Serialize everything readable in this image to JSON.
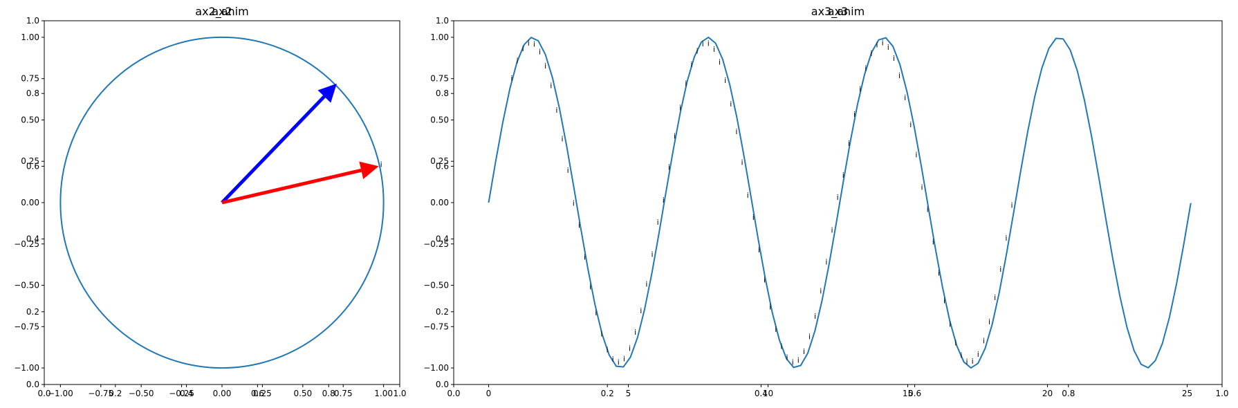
{
  "chart_data": [
    {
      "type": "line",
      "titles": [
        "ax2",
        "ax2_anim"
      ],
      "xlim": [
        -1.1,
        1.1
      ],
      "ylim": [
        -1.1,
        1.1
      ],
      "xticks": [
        {
          "v": -1.0,
          "label": "−1.00"
        },
        {
          "v": -0.75,
          "label": "−0.75"
        },
        {
          "v": -0.5,
          "label": "−0.50"
        },
        {
          "v": -0.25,
          "label": "−0.25"
        },
        {
          "v": 0.0,
          "label": "0.00"
        },
        {
          "v": 0.25,
          "label": "0.25"
        },
        {
          "v": 0.5,
          "label": "0.50"
        },
        {
          "v": 0.75,
          "label": "0.75"
        },
        {
          "v": 1.0,
          "label": "1.00"
        }
      ],
      "yticks": [
        {
          "v": -1.0,
          "label": "−1.00"
        },
        {
          "v": -0.75,
          "label": "−0.75"
        },
        {
          "v": -0.5,
          "label": "−0.50"
        },
        {
          "v": -0.25,
          "label": "−0.25"
        },
        {
          "v": 0.0,
          "label": "0.00"
        },
        {
          "v": 0.25,
          "label": "0.25"
        },
        {
          "v": 0.5,
          "label": "0.50"
        },
        {
          "v": 0.75,
          "label": "0.75"
        },
        {
          "v": 1.0,
          "label": "1.00"
        }
      ],
      "overlay_xticks": [
        {
          "v": 0.0,
          "label": "0.0"
        },
        {
          "v": 0.2,
          "label": "0.2"
        },
        {
          "v": 0.4,
          "label": "0.4"
        },
        {
          "v": 0.6,
          "label": "0.6"
        },
        {
          "v": 0.8,
          "label": "0.8"
        },
        {
          "v": 1.0,
          "label": "1.0"
        }
      ],
      "overlay_yticks": [
        {
          "v": 0.0,
          "label": "0.0"
        },
        {
          "v": 0.2,
          "label": "0.2"
        },
        {
          "v": 0.4,
          "label": "0.4"
        },
        {
          "v": 0.6,
          "label": "0.6"
        },
        {
          "v": 0.8,
          "label": "0.8"
        },
        {
          "v": 1.0,
          "label": "1.0"
        }
      ],
      "circle": {
        "radius": 1.0,
        "center": [
          0,
          0
        ],
        "color": "#1f77b4"
      },
      "arrows": [
        {
          "from": [
            0,
            0
          ],
          "to": [
            0.71,
            0.72
          ],
          "color": "#0000ff"
        },
        {
          "from": [
            0,
            0
          ],
          "to": [
            0.97,
            0.22
          ],
          "color": "#ff0000"
        }
      ],
      "annotations": [
        {
          "x": 0.985,
          "y": 0.23,
          "text": "i"
        }
      ]
    },
    {
      "type": "line",
      "titles": [
        "ax3",
        "ax3_anim"
      ],
      "xlim": [
        -1.25,
        26.25
      ],
      "ylim": [
        -1.1,
        1.1
      ],
      "xticks": [
        {
          "v": 0,
          "label": "0"
        },
        {
          "v": 5,
          "label": "5"
        },
        {
          "v": 10,
          "label": "10"
        },
        {
          "v": 15,
          "label": "15"
        },
        {
          "v": 20,
          "label": "20"
        },
        {
          "v": 25,
          "label": "25"
        }
      ],
      "yticks": [
        {
          "v": -1.0,
          "label": "−1.00"
        },
        {
          "v": -0.75,
          "label": "−0.75"
        },
        {
          "v": -0.5,
          "label": "−0.50"
        },
        {
          "v": -0.25,
          "label": "−0.25"
        },
        {
          "v": 0.0,
          "label": "0.00"
        },
        {
          "v": 0.25,
          "label": "0.25"
        },
        {
          "v": 0.5,
          "label": "0.50"
        },
        {
          "v": 0.75,
          "label": "0.75"
        },
        {
          "v": 1.0,
          "label": "1.00"
        }
      ],
      "overlay_xticks": [
        {
          "v": 0.0,
          "label": "0.0"
        },
        {
          "v": 0.2,
          "label": "0.2"
        },
        {
          "v": 0.4,
          "label": "0.4"
        },
        {
          "v": 0.6,
          "label": "0.6"
        },
        {
          "v": 0.8,
          "label": "0.8"
        },
        {
          "v": 1.0,
          "label": "1.0"
        }
      ],
      "overlay_yticks": [
        {
          "v": 0.0,
          "label": "0.0"
        },
        {
          "v": 0.2,
          "label": "0.2"
        },
        {
          "v": 0.4,
          "label": "0.4"
        },
        {
          "v": 0.6,
          "label": "0.6"
        },
        {
          "v": 0.8,
          "label": "0.8"
        },
        {
          "v": 1.0,
          "label": "1.0"
        }
      ],
      "series": [
        {
          "function": "sin",
          "x_range": [
            0,
            25.13
          ],
          "samples": 100,
          "color": "#1f77b4"
        }
      ],
      "annotation_text": "i",
      "annotation_x_range": [
        0.9,
        18.8
      ],
      "annotation_count": 90
    }
  ]
}
